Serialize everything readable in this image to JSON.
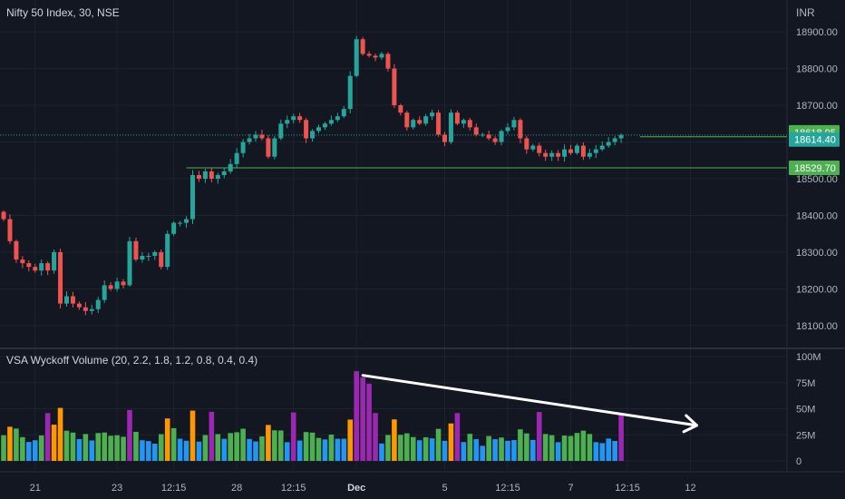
{
  "header": {
    "symbol_title": "Nifty 50 Index, 30, NSE",
    "currency": "INR"
  },
  "indicator": {
    "title": "VSA Wyckoff Volume (20, 2.2, 1.8, 1.2, 0.8, 0.4, 0.4)"
  },
  "colors": {
    "background": "#131722",
    "grid": "#1e222d",
    "up": "#26a69a",
    "down": "#ef5350",
    "level_line": "#4caf50",
    "label_green": "#4caf50",
    "label_teal": "#26a69a",
    "vol_blue": "#2196f3",
    "vol_green": "#4caf50",
    "vol_orange": "#ff9800",
    "vol_purple": "#9c27b0",
    "arrow": "#ffffff"
  },
  "chart_data": [
    {
      "type": "candlestick",
      "symbol": "Nifty 50 Index",
      "interval": "30",
      "exchange": "NSE",
      "y_ticks": [
        "18900.00",
        "18800.00",
        "18700.00",
        "18600.00",
        "18500.00",
        "18400.00",
        "18300.00",
        "18200.00",
        "18100.00"
      ],
      "ylim": [
        18043,
        18962
      ],
      "x_ticks": [
        {
          "label": "21",
          "index": 5
        },
        {
          "label": "23",
          "index": 18
        },
        {
          "label": "12:15",
          "index": 27
        },
        {
          "label": "28",
          "index": 37
        },
        {
          "label": "12:15",
          "index": 46
        },
        {
          "label": "Dec",
          "index": 56
        },
        {
          "label": "5",
          "index": 70
        },
        {
          "label": "12:15",
          "index": 80
        },
        {
          "label": "7",
          "index": 90
        },
        {
          "label": "12:15",
          "index": 99
        },
        {
          "label": "12",
          "index": 109
        }
      ],
      "price_labels": [
        {
          "text": "18618.95",
          "value": 18618.95
        },
        {
          "text": "18614.40",
          "value": 18614.4
        },
        {
          "text": "18529.70",
          "value": 18529.7
        }
      ],
      "horizontal_levels": [
        18529.7,
        18614.4
      ],
      "closes": [
        18390,
        18330,
        18280,
        18270,
        18260,
        18250,
        18270,
        18250,
        18300,
        18160,
        18180,
        18160,
        18150,
        18140,
        18145,
        18170,
        18210,
        18200,
        18220,
        18210,
        18330,
        18280,
        18290,
        18290,
        18300,
        18260,
        18350,
        18380,
        18380,
        18390,
        18510,
        18500,
        18520,
        18500,
        18510,
        18520,
        18540,
        18570,
        18600,
        18610,
        18620,
        18610,
        18560,
        18610,
        18650,
        18660,
        18670,
        18660,
        18610,
        18630,
        18640,
        18650,
        18660,
        18670,
        18690,
        18780,
        18880,
        18840,
        18835,
        18830,
        18840,
        18800,
        18700,
        18680,
        18640,
        18660,
        18650,
        18670,
        18680,
        18620,
        18600,
        18680,
        18650,
        18660,
        18640,
        18620,
        18620,
        18610,
        18600,
        18630,
        18640,
        18660,
        18610,
        18580,
        18590,
        18570,
        18560,
        18570,
        18560,
        18580,
        18570,
        18590,
        18560,
        18570,
        18580,
        18590,
        18600,
        18610,
        18618.95
      ]
    },
    {
      "type": "bar",
      "name": "VSA Wyckoff Volume",
      "params": [
        20,
        2.2,
        1.8,
        1.2,
        0.8,
        0.4,
        0.4
      ],
      "y_ticks": [
        "100M",
        "75M",
        "50M",
        "25M",
        "0"
      ],
      "ylim": [
        0,
        100
      ],
      "arrow_from_index": 57,
      "arrow_to_index": 110,
      "arrow_from_value": 82,
      "arrow_to_value": 34
    }
  ]
}
